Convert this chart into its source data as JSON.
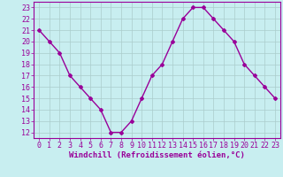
{
  "x": [
    0,
    1,
    2,
    3,
    4,
    5,
    6,
    7,
    8,
    9,
    10,
    11,
    12,
    13,
    14,
    15,
    16,
    17,
    18,
    19,
    20,
    21,
    22,
    23
  ],
  "y": [
    21,
    20,
    19,
    17,
    16,
    15,
    14,
    12,
    12,
    13,
    15,
    17,
    18,
    20,
    22,
    23,
    23,
    22,
    21,
    20,
    18,
    17,
    16,
    15
  ],
  "line_color": "#990099",
  "marker": "D",
  "marker_size": 2,
  "bg_color": "#c8eef0",
  "grid_color": "#aacccc",
  "xlabel": "Windchill (Refroidissement éolien,°C)",
  "xlabel_color": "#990099",
  "tick_color": "#990099",
  "spine_color": "#990099",
  "ylim": [
    11.5,
    23.5
  ],
  "xlim": [
    -0.5,
    23.5
  ],
  "yticks": [
    12,
    13,
    14,
    15,
    16,
    17,
    18,
    19,
    20,
    21,
    22,
    23
  ],
  "xticks": [
    0,
    1,
    2,
    3,
    4,
    5,
    6,
    7,
    8,
    9,
    10,
    11,
    12,
    13,
    14,
    15,
    16,
    17,
    18,
    19,
    20,
    21,
    22,
    23
  ],
  "tick_fontsize": 6,
  "xlabel_fontsize": 6.5,
  "linewidth": 1.0
}
